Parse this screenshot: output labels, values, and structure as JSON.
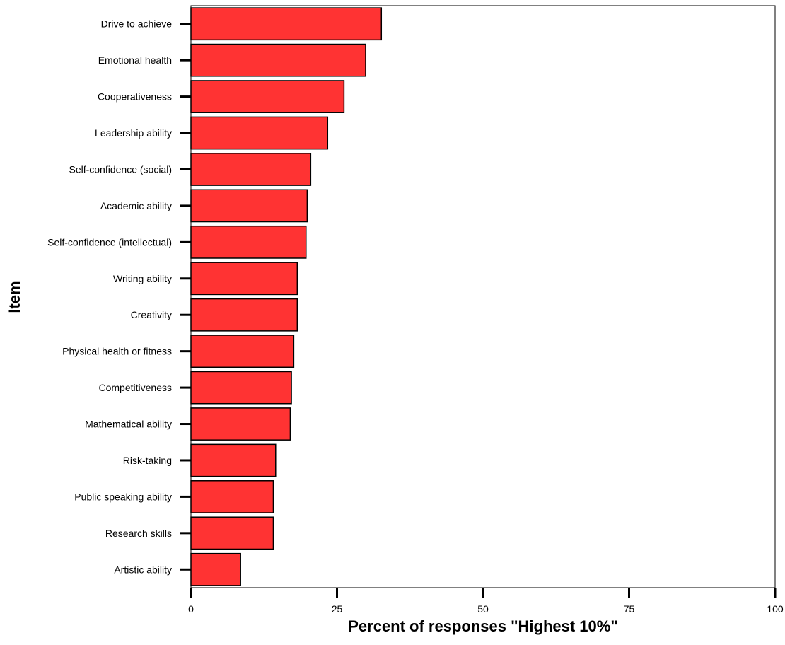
{
  "chart_data": {
    "type": "bar",
    "orientation": "horizontal",
    "title": "",
    "xlabel": "Percent of responses \"Highest 10%\"",
    "ylabel": "Item",
    "xlim": [
      0,
      100
    ],
    "xticks": [
      0,
      25,
      50,
      75,
      100
    ],
    "grid": false,
    "bar_color": "#FF3333",
    "categories": [
      "Drive to achieve",
      "Emotional health",
      "Cooperativeness",
      "Leadership ability",
      "Self-confidence (social)",
      "Academic ability",
      "Self-confidence (intellectual)",
      "Writing ability",
      "Creativity",
      "Physical health or fitness",
      "Competitiveness",
      "Mathematical ability",
      "Risk-taking",
      "Public speaking ability",
      "Research skills",
      "Artistic ability"
    ],
    "values": [
      32.6,
      29.9,
      26.2,
      23.4,
      20.5,
      19.9,
      19.7,
      18.2,
      18.2,
      17.6,
      17.2,
      17.0,
      14.5,
      14.1,
      14.1,
      8.5
    ]
  }
}
